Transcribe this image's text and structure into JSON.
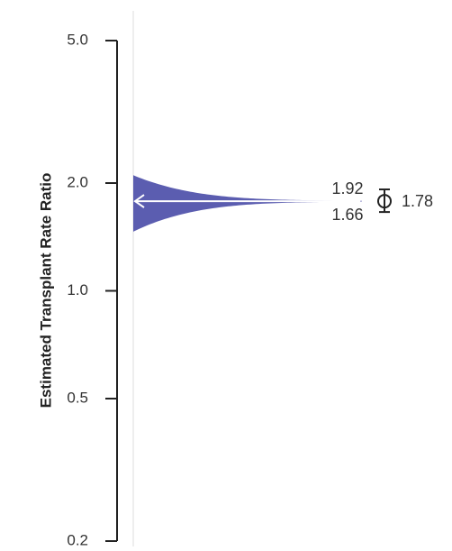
{
  "chart_data": {
    "type": "violin",
    "ylabel": "Estimated Transplant Rate Ratio",
    "yscale": "log",
    "ylim": [
      0.2,
      5.0
    ],
    "yticks": [
      {
        "value": 5.0,
        "label": "5.0"
      },
      {
        "value": 2.0,
        "label": "2.0"
      },
      {
        "value": 1.0,
        "label": "1.0"
      },
      {
        "value": 0.5,
        "label": "0.5"
      },
      {
        "value": 0.2,
        "label": "0.2"
      }
    ],
    "estimate": {
      "value": 1.78,
      "lower": 1.66,
      "upper": 1.92,
      "value_label": "1.78",
      "lower_label": "1.66",
      "upper_label": "1.92"
    },
    "colors": {
      "fill": "#5b5db0",
      "axis": "#222222",
      "reference_line": "#dddddd",
      "arrow": "#ffffff"
    },
    "grid": false
  }
}
